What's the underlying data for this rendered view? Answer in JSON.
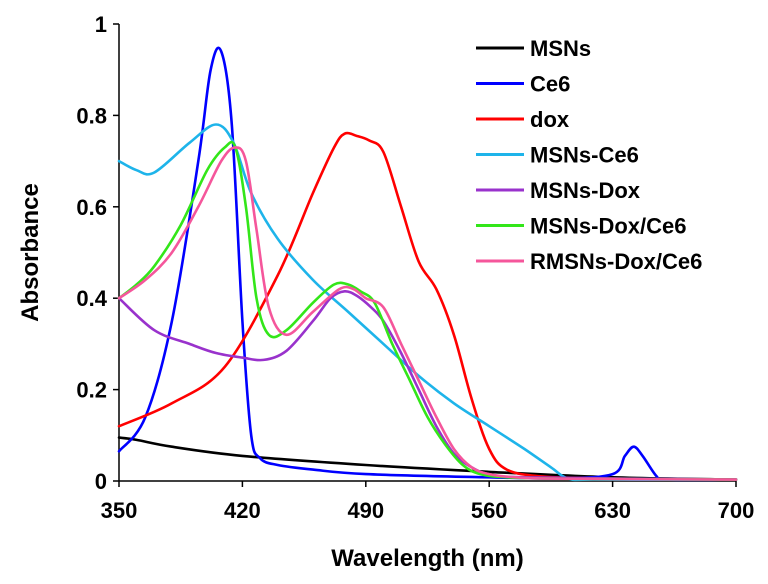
{
  "chart_data": {
    "type": "line",
    "title": "",
    "xlabel": "Wavelength (nm)",
    "ylabel": "Absorbance",
    "xlim": [
      350,
      700
    ],
    "ylim": [
      0,
      1
    ],
    "xticks": [
      "350",
      "420",
      "490",
      "560",
      "630",
      "700"
    ],
    "xtick_values": [
      350,
      420,
      490,
      560,
      630,
      700
    ],
    "yticks": [
      "0",
      "0.2",
      "0.4",
      "0.6",
      "0.8",
      "1"
    ],
    "ytick_values": [
      0,
      0.2,
      0.4,
      0.6,
      0.8,
      1
    ],
    "grid": false,
    "legend_position": "top-right",
    "series": [
      {
        "name": "MSNs",
        "color": "#000000",
        "x": [
          350,
          360,
          380,
          420,
          490,
          560,
          630,
          700
        ],
        "y": [
          0.095,
          0.09,
          0.075,
          0.055,
          0.035,
          0.02,
          0.008,
          0.003
        ]
      },
      {
        "name": "Ce6",
        "color": "#0000ff",
        "x": [
          350,
          365,
          380,
          395,
          402,
          408,
          414,
          420,
          425,
          430,
          440,
          460,
          490,
          560,
          600,
          630,
          637,
          642,
          647,
          655,
          660,
          700
        ],
        "y": [
          0.065,
          0.14,
          0.35,
          0.7,
          0.9,
          0.94,
          0.78,
          0.35,
          0.1,
          0.05,
          0.035,
          0.025,
          0.015,
          0.008,
          0.006,
          0.015,
          0.055,
          0.075,
          0.055,
          0.01,
          0.003,
          0.003
        ]
      },
      {
        "name": "dox",
        "color": "#ff0000",
        "x": [
          350,
          380,
          410,
          440,
          460,
          472,
          478,
          485,
          492,
          500,
          510,
          520,
          530,
          540,
          550,
          560,
          570,
          590,
          630,
          700
        ],
        "y": [
          0.12,
          0.17,
          0.25,
          0.45,
          0.63,
          0.73,
          0.76,
          0.755,
          0.745,
          0.72,
          0.6,
          0.48,
          0.42,
          0.32,
          0.18,
          0.07,
          0.025,
          0.01,
          0.005,
          0.003
        ]
      },
      {
        "name": "MSNs-Ce6",
        "color": "#1eb4ea",
        "x": [
          350,
          360,
          370,
          390,
          405,
          415,
          425,
          440,
          460,
          480,
          500,
          520,
          540,
          560,
          580,
          595,
          605,
          620,
          700
        ],
        "y": [
          0.7,
          0.68,
          0.675,
          0.74,
          0.78,
          0.74,
          0.63,
          0.53,
          0.44,
          0.37,
          0.3,
          0.23,
          0.17,
          0.12,
          0.07,
          0.03,
          0.005,
          0.003,
          0.003
        ]
      },
      {
        "name": "MSNs-Dox",
        "color": "#9932cc",
        "x": [
          350,
          370,
          390,
          405,
          420,
          432,
          445,
          460,
          470,
          478,
          485,
          493,
          500,
          510,
          520,
          530,
          540,
          550,
          560,
          580,
          700
        ],
        "y": [
          0.4,
          0.33,
          0.3,
          0.28,
          0.27,
          0.265,
          0.285,
          0.35,
          0.4,
          0.415,
          0.405,
          0.38,
          0.35,
          0.28,
          0.2,
          0.12,
          0.06,
          0.03,
          0.015,
          0.008,
          0.003
        ]
      },
      {
        "name": "MSNs-Dox/Ce6",
        "color": "#33e619",
        "x": [
          350,
          360,
          370,
          385,
          400,
          410,
          416,
          422,
          428,
          435,
          445,
          460,
          472,
          480,
          487,
          495,
          505,
          515,
          525,
          535,
          545,
          555,
          570,
          600,
          700
        ],
        "y": [
          0.4,
          0.43,
          0.47,
          0.56,
          0.68,
          0.73,
          0.73,
          0.6,
          0.4,
          0.32,
          0.33,
          0.39,
          0.43,
          0.43,
          0.415,
          0.39,
          0.3,
          0.22,
          0.14,
          0.08,
          0.035,
          0.015,
          0.008,
          0.005,
          0.003
        ]
      },
      {
        "name": "RMSNs-Dox/Ce6",
        "color": "#f5569b",
        "x": [
          350,
          365,
          380,
          395,
          408,
          416,
          422,
          428,
          435,
          445,
          460,
          475,
          483,
          490,
          500,
          510,
          520,
          530,
          540,
          550,
          560,
          575,
          600,
          700
        ],
        "y": [
          0.4,
          0.44,
          0.5,
          0.6,
          0.7,
          0.73,
          0.7,
          0.55,
          0.38,
          0.32,
          0.37,
          0.42,
          0.42,
          0.4,
          0.38,
          0.3,
          0.22,
          0.14,
          0.07,
          0.03,
          0.015,
          0.008,
          0.005,
          0.003
        ]
      }
    ]
  }
}
